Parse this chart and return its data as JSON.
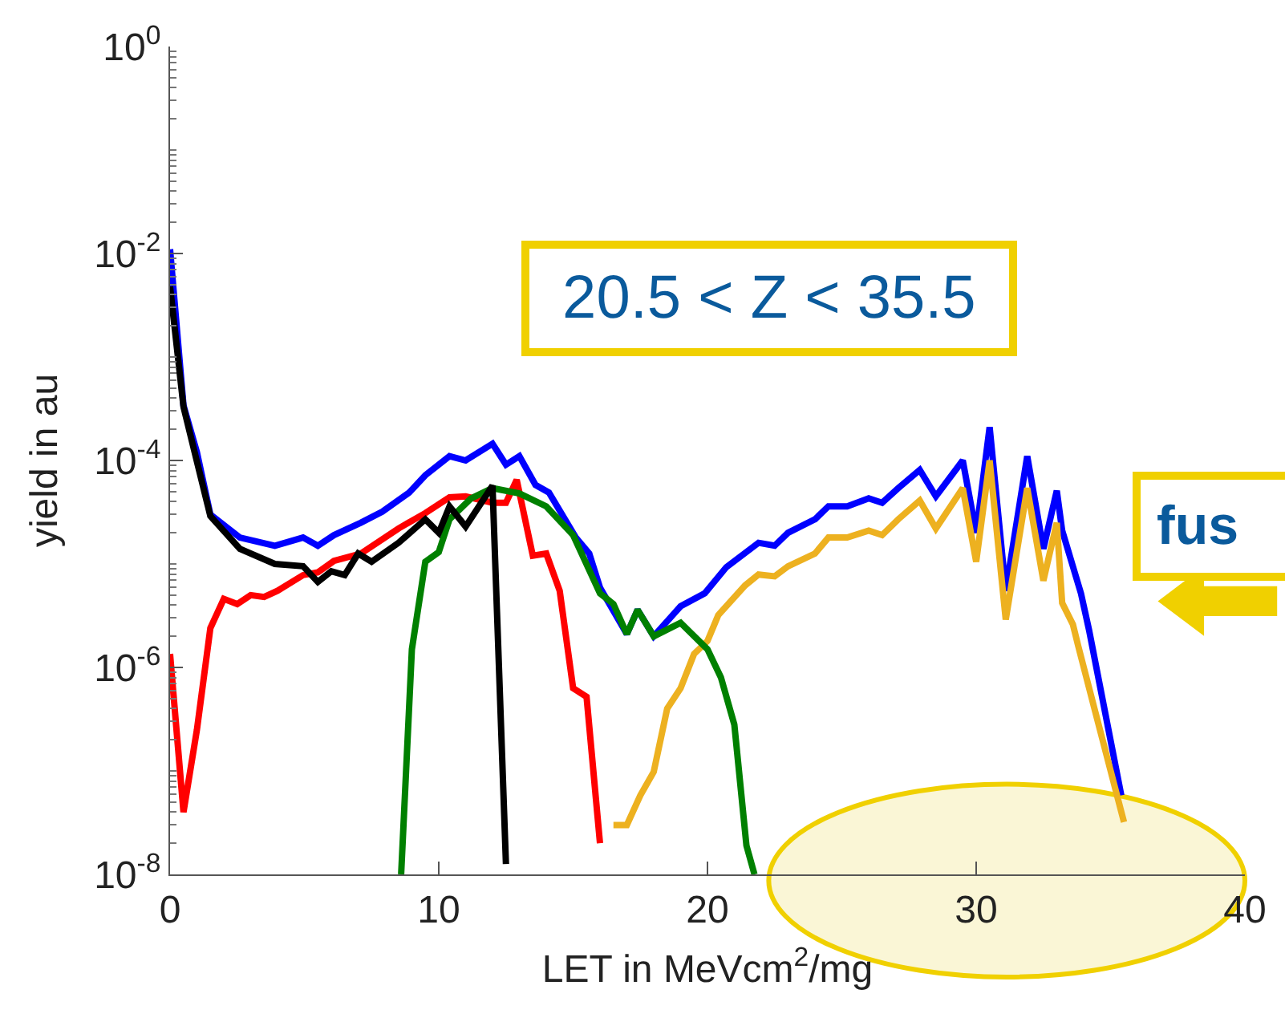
{
  "chart_data": {
    "type": "line",
    "xlabel": "LET in MeVcm$^{2}$/mg",
    "ylabel": "yield in au",
    "log": "y",
    "grid": false,
    "marker": "none",
    "line_style": "solid",
    "xlim": [
      0,
      40
    ],
    "xticks": [
      0,
      10,
      20,
      30,
      40
    ],
    "ylim": [
      1e-08,
      1
    ],
    "yticks": [
      {
        "value": 1e-08,
        "label": "10$^{-8}$"
      },
      {
        "value": 1e-06,
        "label": "10$^{-6}$"
      },
      {
        "value": 0.0001,
        "label": "10$^{-4}$"
      },
      {
        "value": 0.01,
        "label": "10$^{-2}$"
      },
      {
        "value": 1,
        "label": "10$^{0}$"
      }
    ],
    "annotations": [
      "20.5 < Z < 35.5",
      "fus"
    ],
    "series": [
      {
        "color": "#0000ff",
        "x": [
          0,
          0.5,
          1.0,
          1.5,
          2.6,
          3.9,
          4.95,
          5.5,
          6.1,
          7.1,
          7.9,
          8.9,
          9.5,
          10.4,
          11.0,
          12.0,
          12.5,
          13.0,
          13.6,
          14.1,
          15.1,
          15.6,
          16.0,
          17.0,
          17.4,
          18.0,
          19.0,
          19.9,
          20.7,
          21.9,
          22.5,
          23.0,
          24.0,
          24.5,
          25.2,
          26.0,
          26.5,
          27.1,
          27.9,
          28.5,
          29.5,
          30.0,
          30.5,
          31.1,
          31.9,
          32.5,
          33.0,
          33.2,
          33.9,
          34.2,
          35.4
        ],
        "values": [
          0.011,
          0.00034,
          0.00012,
          3e-05,
          1.8e-05,
          1.5e-05,
          1.8e-05,
          1.5e-05,
          1.9e-05,
          2.5e-05,
          3.2e-05,
          4.9e-05,
          7.2e-05,
          0.00011,
          0.0001,
          0.000145,
          9.1e-05,
          0.00011,
          5.8e-05,
          4.9e-05,
          1.8e-05,
          1.26e-05,
          5.9e-06,
          2.1e-06,
          3.6e-06,
          2e-06,
          3.9e-06,
          5.2e-06,
          9.3e-06,
          1.6e-05,
          1.5e-05,
          2e-05,
          2.7e-05,
          3.6e-05,
          3.6e-05,
          4.3e-05,
          3.9e-05,
          5.4e-05,
          8.1e-05,
          4.5e-05,
          0.0001,
          2e-05,
          0.00021,
          5.5e-06,
          0.00011,
          1.4e-05,
          5.1e-05,
          2.1e-05,
          5.2e-06,
          2.3e-06,
          5.8e-08
        ]
      },
      {
        "color": "#edb120",
        "x": [
          16.5,
          17.0,
          17.5,
          18.0,
          18.5,
          19.0,
          19.5,
          20.0,
          20.4,
          21.4,
          21.9,
          22.5,
          23.0,
          24.0,
          24.5,
          25.2,
          26.0,
          26.5,
          27.1,
          27.9,
          28.5,
          29.5,
          30.0,
          30.5,
          31.1,
          31.9,
          32.5,
          33.0,
          33.2,
          33.6,
          33.8,
          34.4,
          35.5
        ],
        "values": [
          3e-08,
          3e-08,
          5.8e-08,
          9.8e-08,
          4e-07,
          6.3e-07,
          1.35e-06,
          1.8e-06,
          3.2e-06,
          6.2e-06,
          7.9e-06,
          7.6e-06,
          9.5e-06,
          1.26e-05,
          1.8e-05,
          1.8e-05,
          2.1e-05,
          1.9e-05,
          2.7e-05,
          4.1e-05,
          2.2e-05,
          5.4e-05,
          1.05e-05,
          0.0001,
          2.9e-06,
          5.4e-05,
          6.9e-06,
          2.5e-05,
          4.2e-06,
          2.6e-06,
          1.6e-06,
          4e-07,
          3.2e-08
        ]
      },
      {
        "color": "#ff0000",
        "x": [
          0,
          0.5,
          1.0,
          1.5,
          2.0,
          2.5,
          3.0,
          3.5,
          4.0,
          4.95,
          5.5,
          6.1,
          7.1,
          8.5,
          9.5,
          10.4,
          11.0,
          12.0,
          12.5,
          12.9,
          13.5,
          14.0,
          14.5,
          15.0,
          15.5,
          16.0
        ],
        "values": [
          1.35e-06,
          4e-08,
          2.5e-07,
          2.4e-06,
          4.6e-06,
          4.1e-06,
          5e-06,
          4.8e-06,
          5.5e-06,
          7.8e-06,
          8.3e-06,
          1.07e-05,
          1.26e-05,
          2.2e-05,
          3.1e-05,
          4.4e-05,
          4.5e-05,
          3.9e-05,
          3.9e-05,
          6.5e-05,
          1.2e-05,
          1.26e-05,
          5.5e-06,
          6.3e-07,
          5.2e-07,
          2e-08
        ]
      },
      {
        "color": "#008000",
        "x": [
          8.6,
          9.0,
          9.5,
          10.0,
          10.4,
          11.2,
          12.0,
          13.0,
          14.0,
          15.0,
          16.0,
          16.5,
          17.0,
          17.4,
          18.0,
          19.0,
          20.0,
          20.5,
          21.0,
          21.45,
          21.75
        ],
        "values": [
          1e-08,
          1.5e-06,
          1.05e-05,
          1.3e-05,
          2.7e-05,
          4.3e-05,
          5.4e-05,
          4.8e-05,
          3.6e-05,
          1.9e-05,
          5.2e-06,
          4.1e-06,
          2.1e-06,
          3.6e-06,
          2e-06,
          2.7e-06,
          1.5e-06,
          8e-07,
          2.8e-07,
          1.9e-08,
          1e-08
        ]
      },
      {
        "color": "#000000",
        "x": [
          0,
          0.5,
          0.95,
          1.5,
          2.6,
          3.9,
          4.95,
          5.5,
          6.0,
          6.5,
          7.0,
          7.5,
          8.5,
          9.5,
          10.0,
          10.4,
          11.0,
          12.0,
          12.5
        ],
        "values": [
          0.0048,
          0.00033,
          0.00011,
          2.9e-05,
          1.4e-05,
          1e-05,
          9.5e-06,
          6.7e-06,
          8.5e-06,
          7.8e-06,
          1.26e-05,
          1.05e-05,
          1.6e-05,
          2.7e-05,
          2e-05,
          3.6e-05,
          2.3e-05,
          5.7e-05,
          1.26e-08
        ]
      }
    ]
  }
}
